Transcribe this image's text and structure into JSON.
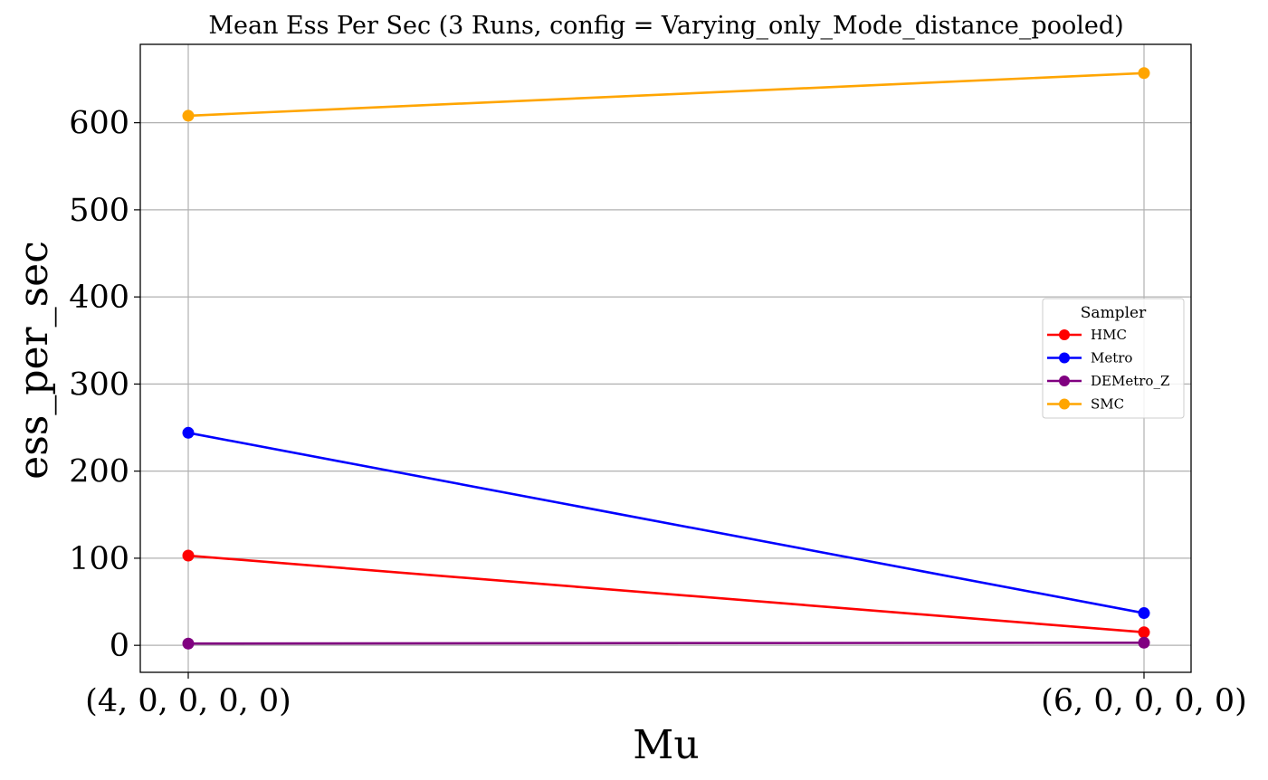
{
  "chart_data": {
    "type": "line",
    "title": "Mean Ess Per Sec (3 Runs, config = Varying_only_Mode_distance_pooled)",
    "xlabel": "Mu",
    "ylabel": "ess_per_sec",
    "categories": [
      "(4, 0, 0, 0, 0)",
      "(6, 0, 0, 0, 0)"
    ],
    "ylim": [
      -31,
      690
    ],
    "yticks": [
      0,
      100,
      200,
      300,
      400,
      500,
      600
    ],
    "grid": true,
    "legend": {
      "title": "Sampler",
      "placement": "center-right"
    },
    "series": [
      {
        "name": "HMC",
        "color": "#ff0000",
        "values": [
          103,
          15
        ]
      },
      {
        "name": "Metro",
        "color": "#0000ff",
        "values": [
          244,
          37
        ]
      },
      {
        "name": "DEMetro_Z",
        "color": "#800080",
        "values": [
          2,
          3
        ]
      },
      {
        "name": "SMC",
        "color": "#ffa500",
        "values": [
          608,
          657
        ]
      }
    ]
  }
}
